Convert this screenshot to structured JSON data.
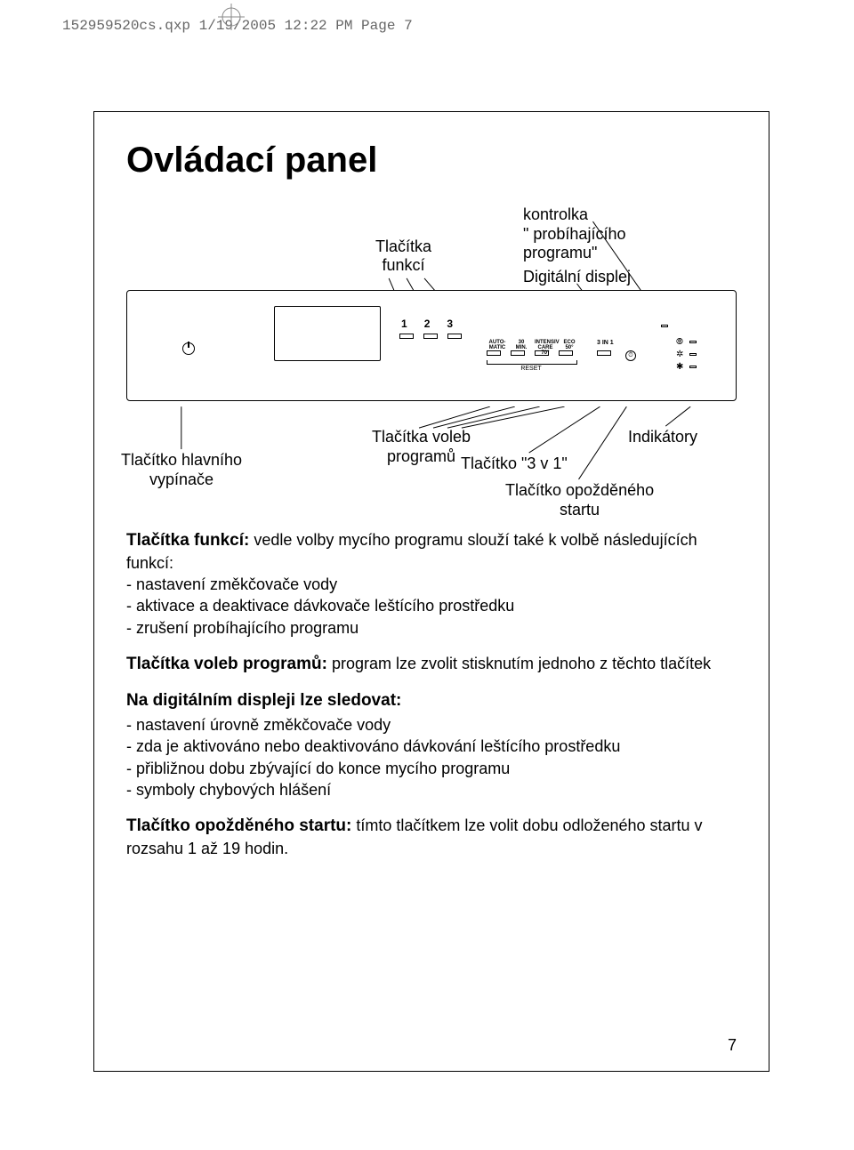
{
  "header": "152959520cs.qxp  1/19/2005  12:22 PM  Page 7",
  "title": "Ovládací panel",
  "upper_labels": {
    "funkci": "Tlačítka\nfunkcí",
    "kontrolka": "kontrolka\n\" probíhajícího\nprogramu\"",
    "displej": "Digitální displej"
  },
  "panel": {
    "nums": [
      "1",
      "2",
      "3"
    ],
    "prog_labels": [
      "AUTO-\nMATIC",
      "30\nMIN.",
      "INTENSIV\nCARE 70°",
      "ECO\n50°"
    ],
    "three_in_one": "3 IN 1",
    "reset": "RESET"
  },
  "lower_labels": {
    "hlavni": "Tlačítko hlavního\nvypínače",
    "voleb": "Tlačítka voleb\nprogramů",
    "tri_v_1": "Tlačítko \"3 v 1\"",
    "opozd": "Tlačítko opožděného\nstartu",
    "indik": "Indikátory"
  },
  "sections": {
    "s1_head": "Tlačítka funkcí:",
    "s1_text": " vedle volby mycího programu slouží také k volbě následujících funkcí:",
    "s1_items": [
      "nastavení změkčovače vody",
      "aktivace a deaktivace dávkovače leštícího prostředku",
      " zrušení probíhajícího programu"
    ],
    "s2_head": "Tlačítka voleb programů:",
    "s2_text": " program lze zvolit stisknutím jednoho z těchto tlačítek",
    "s3_head": "Na digitálním displeji lze sledovat:",
    "s3_items": [
      "nastavení úrovně změkčovače vody",
      "zda je aktivováno nebo deaktivováno dávkování leštícího prostředku",
      "přibližnou dobu zbývající do konce mycího programu",
      "symboly chybových hlášení"
    ],
    "s4_head": "Tlačítko opožděného startu:",
    "s4_text": " tímto tlačítkem lze volit dobu odloženého startu v rozsahu 1 až 19 hodin."
  },
  "page_num": "7"
}
